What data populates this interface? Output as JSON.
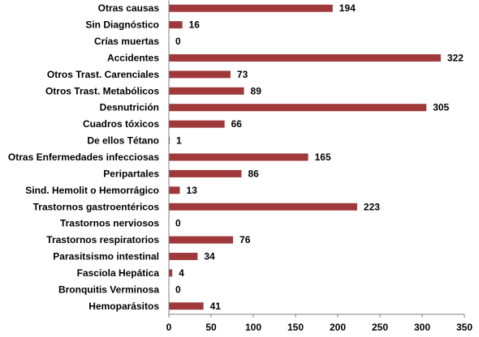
{
  "chart_data": {
    "type": "bar",
    "orientation": "horizontal",
    "categories": [
      "Otras causas",
      "Sin Diagnóstico",
      "Crías muertas",
      "Accidentes",
      "Otros Trast. Carenciales",
      "Otros Trast. Metabólicos",
      "Desnutrición",
      "Cuadros tóxicos",
      "De ellos Tétano",
      "Otras Enfermedades infecciosas",
      "Peripartales",
      "Sind. Hemolit o Hemorrágico",
      "Trastornos gastroentéricos",
      "Trastornos nerviosos",
      "Trastornos respiratorios",
      "Parasitsismo intestinal",
      "Fasciola Hepática",
      "Bronquitis Verminosa",
      "Hemoparásitos"
    ],
    "values": [
      194,
      16,
      0,
      322,
      73,
      89,
      305,
      66,
      1,
      165,
      86,
      13,
      223,
      0,
      76,
      34,
      4,
      0,
      41
    ],
    "xlim": [
      0,
      350
    ],
    "xticks": [
      0,
      50,
      100,
      150,
      200,
      250,
      300,
      350
    ],
    "grid": false,
    "legend": "none",
    "data_labels": true,
    "bar_color": "#A0393A"
  }
}
